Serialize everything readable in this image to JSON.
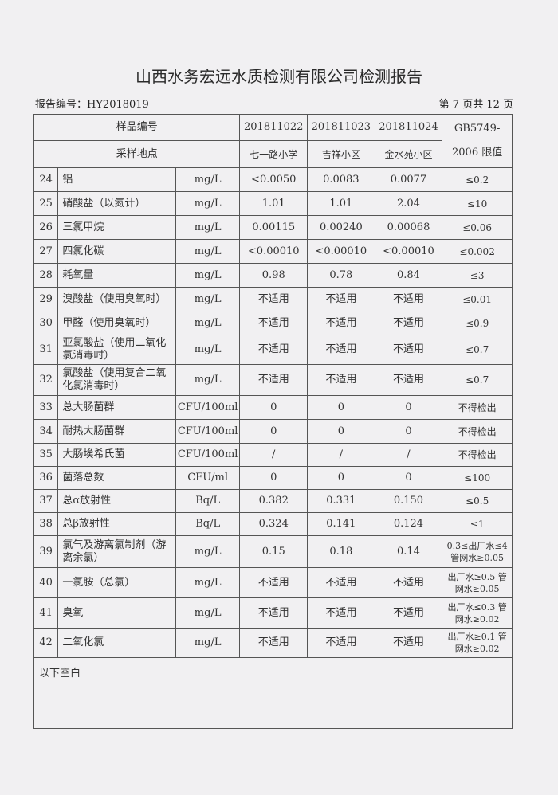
{
  "title": "山西水务宏远水质检测有限公司检测报告",
  "report_no": "报告编号：HY2018019",
  "page": "第 7 页共 12 页",
  "header": {
    "sample_no_label": "样品编号",
    "location_label": "采样地点",
    "limit_label": "GB5749-2006 限值",
    "samples": [
      {
        "no": "201811022",
        "loc": "七一路小学"
      },
      {
        "no": "201811023",
        "loc": "吉祥小区"
      },
      {
        "no": "201811024",
        "loc": "金水苑小区"
      }
    ]
  },
  "rows": [
    {
      "n": "24",
      "name": "铝",
      "unit": "mg/L",
      "v": [
        "<0.0050",
        "0.0083",
        "0.0077"
      ],
      "limit": "≤0.2"
    },
    {
      "n": "25",
      "name": "硝酸盐（以氮计）",
      "unit": "mg/L",
      "v": [
        "1.01",
        "1.01",
        "2.04"
      ],
      "limit": "≤10"
    },
    {
      "n": "26",
      "name": "三氯甲烷",
      "unit": "mg/L",
      "v": [
        "0.00115",
        "0.00240",
        "0.00068"
      ],
      "limit": "≤0.06"
    },
    {
      "n": "27",
      "name": "四氯化碳",
      "unit": "mg/L",
      "v": [
        "<0.00010",
        "<0.00010",
        "<0.00010"
      ],
      "limit": "≤0.002"
    },
    {
      "n": "28",
      "name": "耗氧量",
      "unit": "mg/L",
      "v": [
        "0.98",
        "0.78",
        "0.84"
      ],
      "limit": "≤3"
    },
    {
      "n": "29",
      "name": "溴酸盐（使用臭氧时）",
      "unit": "mg/L",
      "v": [
        "不适用",
        "不适用",
        "不适用"
      ],
      "limit": "≤0.01"
    },
    {
      "n": "30",
      "name": "甲醛（使用臭氧时）",
      "unit": "mg/L",
      "v": [
        "不适用",
        "不适用",
        "不适用"
      ],
      "limit": "≤0.9"
    },
    {
      "n": "31",
      "name": "亚氯酸盐（使用二氧化氯消毒时）",
      "unit": "mg/L",
      "v": [
        "不适用",
        "不适用",
        "不适用"
      ],
      "limit": "≤0.7"
    },
    {
      "n": "32",
      "name": "氯酸盐（使用复合二氧化氯消毒时）",
      "unit": "mg/L",
      "v": [
        "不适用",
        "不适用",
        "不适用"
      ],
      "limit": "≤0.7"
    },
    {
      "n": "33",
      "name": "总大肠菌群",
      "unit": "CFU/100ml",
      "v": [
        "0",
        "0",
        "0"
      ],
      "limit": "不得检出"
    },
    {
      "n": "34",
      "name": "耐热大肠菌群",
      "unit": "CFU/100ml",
      "v": [
        "0",
        "0",
        "0"
      ],
      "limit": "不得检出"
    },
    {
      "n": "35",
      "name": "大肠埃希氏菌",
      "unit": "CFU/100ml",
      "v": [
        "/",
        "/",
        "/"
      ],
      "limit": "不得检出"
    },
    {
      "n": "36",
      "name": "菌落总数",
      "unit": "CFU/ml",
      "v": [
        "0",
        "0",
        "0"
      ],
      "limit": "≤100"
    },
    {
      "n": "37",
      "name": "总α放射性",
      "unit": "Bq/L",
      "v": [
        "0.382",
        "0.331",
        "0.150"
      ],
      "limit": "≤0.5"
    },
    {
      "n": "38",
      "name": "总β放射性",
      "unit": "Bq/L",
      "v": [
        "0.324",
        "0.141",
        "0.124"
      ],
      "limit": "≤1"
    },
    {
      "n": "39",
      "name": "氯气及游离氯制剂（游离余氯）",
      "unit": "mg/L",
      "v": [
        "0.15",
        "0.18",
        "0.14"
      ],
      "limit": "0.3≤出厂水≤4 管网水≥0.05"
    },
    {
      "n": "40",
      "name": "一氯胺（总氯）",
      "unit": "mg/L",
      "v": [
        "不适用",
        "不适用",
        "不适用"
      ],
      "limit": "出厂水≥0.5 管网水≥0.05"
    },
    {
      "n": "41",
      "name": "臭氧",
      "unit": "mg/L",
      "v": [
        "不适用",
        "不适用",
        "不适用"
      ],
      "limit": "出厂水≤0.3 管网水≥0.02"
    },
    {
      "n": "42",
      "name": "二氧化氯",
      "unit": "mg/L",
      "v": [
        "不适用",
        "不适用",
        "不适用"
      ],
      "limit": "出厂水≥0.1 管网水≥0.02"
    }
  ],
  "footer_note": "以下空白"
}
